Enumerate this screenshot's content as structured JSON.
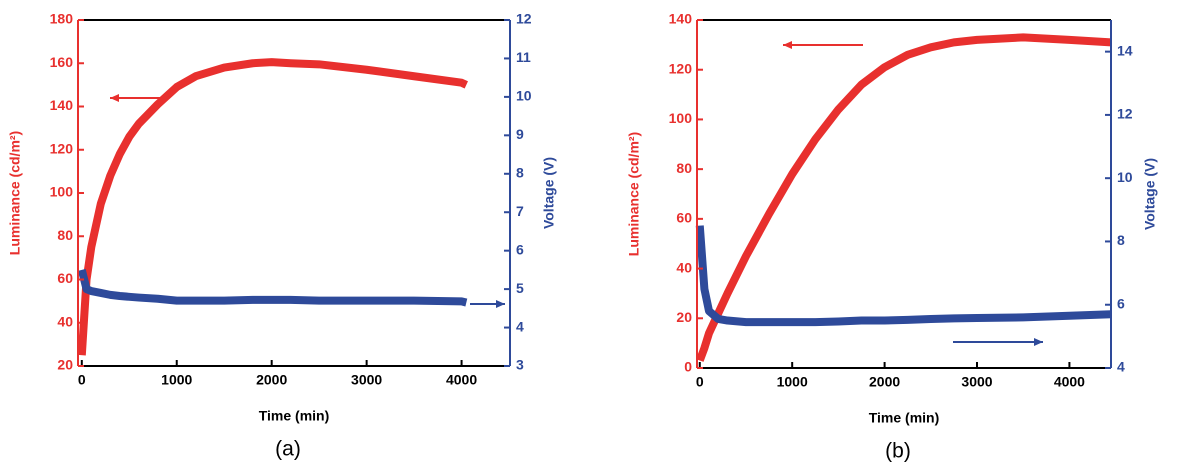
{
  "chart_data": [
    {
      "type": "line",
      "title": "(a)",
      "xlabel": "Time (min)",
      "ylabel": "Luminance (cd/m²)",
      "y2label": "Voltage (V)",
      "x": [
        0,
        50,
        100,
        200,
        300,
        400,
        500,
        600,
        800,
        1000,
        1200,
        1500,
        1800,
        2000,
        2200,
        2500,
        3000,
        3500,
        4000,
        4050
      ],
      "series": [
        {
          "color": "#e8302e",
          "values": [
            25,
            60,
            75,
            95,
            108,
            118,
            126,
            132,
            141,
            149,
            154,
            158,
            160,
            160.5,
            160,
            159.5,
            157,
            154,
            151,
            150
          ]
        },
        {
          "color": "#2e4a9a",
          "axis": "y2",
          "values": [
            5.5,
            5.0,
            4.95,
            4.9,
            4.85,
            4.82,
            4.8,
            4.78,
            4.75,
            4.7,
            4.7,
            4.7,
            4.72,
            4.72,
            4.72,
            4.7,
            4.7,
            4.7,
            4.68,
            4.65
          ]
        }
      ],
      "xlim": [
        -40,
        4510
      ],
      "xticks": [
        0,
        1000,
        2000,
        3000,
        4000
      ],
      "ylim": [
        20,
        180
      ],
      "yticks": [
        20,
        40,
        60,
        80,
        100,
        120,
        140,
        160,
        180
      ],
      "y2lim": [
        3,
        12
      ],
      "y2ticks": [
        3,
        4,
        5,
        6,
        7,
        8,
        9,
        10,
        11,
        12
      ]
    },
    {
      "type": "line",
      "title": "(b)",
      "xlabel": "Time (min)",
      "ylabel": "Luminance (cd/m²)",
      "y2label": "Voltage (V)",
      "x": [
        0,
        50,
        100,
        200,
        300,
        500,
        750,
        1000,
        1250,
        1500,
        1750,
        2000,
        2250,
        2500,
        2750,
        3000,
        3500,
        4000,
        4450
      ],
      "series": [
        {
          "color": "#e8302e",
          "values": [
            3,
            8,
            14,
            22,
            30,
            45,
            62,
            78,
            92,
            104,
            114,
            121,
            126,
            129,
            131,
            132,
            133,
            132,
            131
          ]
        },
        {
          "color": "#2e4a9a",
          "axis": "y2",
          "values": [
            8.5,
            6.5,
            5.8,
            5.55,
            5.5,
            5.45,
            5.45,
            5.45,
            5.45,
            5.47,
            5.5,
            5.5,
            5.52,
            5.55,
            5.57,
            5.58,
            5.6,
            5.65,
            5.7
          ]
        }
      ],
      "xlim": [
        -30,
        4450
      ],
      "xticks": [
        0,
        1000,
        2000,
        3000,
        4000
      ],
      "ylim": [
        0,
        140
      ],
      "yticks": [
        0,
        20,
        40,
        60,
        80,
        100,
        120,
        140
      ],
      "y2lim": [
        4,
        15
      ],
      "y2ticks": [
        4,
        6,
        8,
        10,
        12,
        14
      ]
    }
  ]
}
